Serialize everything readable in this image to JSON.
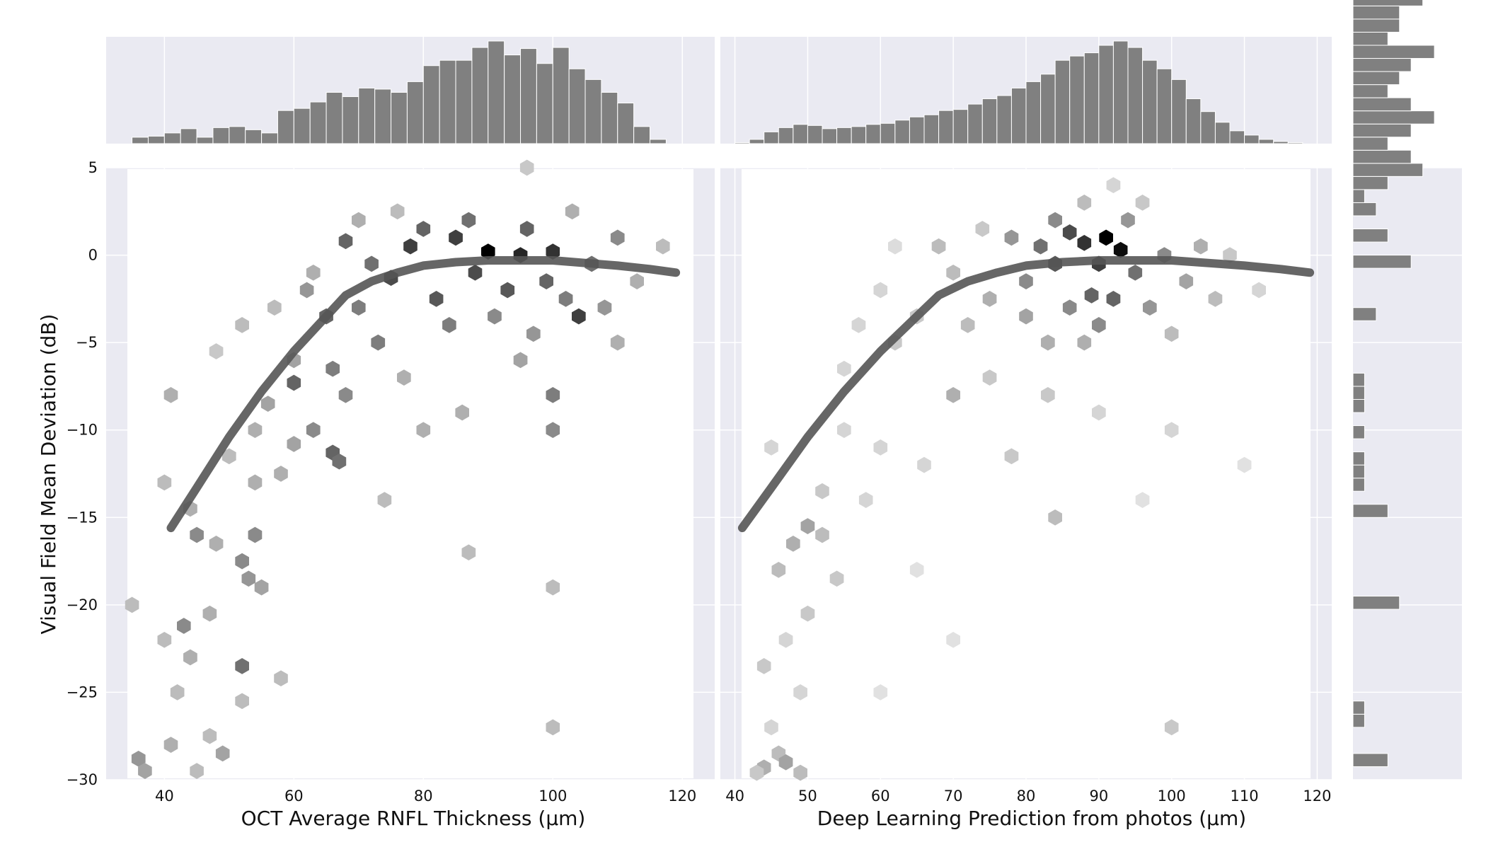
{
  "colors": {
    "panel_bg": "#eaeaf2",
    "grid": "#ffffff",
    "hist_bar": "#808080",
    "hist_edge": "#ffffff",
    "hexbin_dark": "#000000",
    "fit_line": "#555555",
    "text": "#111111"
  },
  "chart_data": [
    {
      "id": "left",
      "type": "hexbin",
      "xlabel": "OCT Average RNFL Thickness (µm)",
      "ylabel": "Visual Field Mean Deviation (dB)",
      "xlim": [
        31,
        125
      ],
      "ylim": [
        -30,
        5
      ],
      "xticks": [
        40,
        60,
        80,
        100,
        120
      ],
      "yticks": [
        5,
        0,
        -5,
        -10,
        -15,
        -20,
        -25,
        -30
      ],
      "grid": true,
      "fit_line": {
        "x": [
          41,
          45,
          50,
          55,
          60,
          65,
          68,
          72,
          76,
          80,
          85,
          90,
          95,
          100,
          105,
          110,
          115,
          119
        ],
        "y": [
          -15.6,
          -13.3,
          -10.4,
          -7.8,
          -5.5,
          -3.5,
          -2.3,
          -1.5,
          -1.0,
          -0.6,
          -0.4,
          -0.3,
          -0.3,
          -0.3,
          -0.45,
          -0.6,
          -0.8,
          -1.0
        ]
      },
      "hexbins": [
        [
          90,
          0.2,
          1.0
        ],
        [
          95,
          0.0,
          0.85
        ],
        [
          85,
          1.0,
          0.75
        ],
        [
          100,
          0.2,
          0.8
        ],
        [
          88,
          -1.0,
          0.7
        ],
        [
          78,
          0.5,
          0.75
        ],
        [
          75,
          -1.3,
          0.7
        ],
        [
          82,
          -2.5,
          0.65
        ],
        [
          93,
          -2.0,
          0.65
        ],
        [
          104,
          -3.5,
          0.75
        ],
        [
          68,
          0.8,
          0.6
        ],
        [
          72,
          -0.5,
          0.55
        ],
        [
          80,
          1.5,
          0.6
        ],
        [
          87,
          2.0,
          0.55
        ],
        [
          96,
          1.5,
          0.6
        ],
        [
          99,
          -1.5,
          0.6
        ],
        [
          106,
          -0.5,
          0.55
        ],
        [
          110,
          1.0,
          0.45
        ],
        [
          70,
          -3.0,
          0.5
        ],
        [
          65,
          -3.5,
          0.6
        ],
        [
          73,
          -5.0,
          0.5
        ],
        [
          84,
          -4.0,
          0.5
        ],
        [
          91,
          -3.5,
          0.45
        ],
        [
          97,
          -4.5,
          0.4
        ],
        [
          102,
          -2.5,
          0.5
        ],
        [
          108,
          -3.0,
          0.4
        ],
        [
          113,
          -1.5,
          0.3
        ],
        [
          117,
          0.5,
          0.25
        ],
        [
          62,
          -2.0,
          0.4
        ],
        [
          60,
          -6.0,
          0.35
        ],
        [
          66,
          -6.5,
          0.5
        ],
        [
          60,
          -7.3,
          0.6
        ],
        [
          68,
          -8.0,
          0.45
        ],
        [
          56,
          -8.5,
          0.35
        ],
        [
          63,
          -10.0,
          0.45
        ],
        [
          66,
          -11.3,
          0.6
        ],
        [
          67,
          -11.8,
          0.55
        ],
        [
          60,
          -10.8,
          0.35
        ],
        [
          58,
          -12.5,
          0.3
        ],
        [
          54,
          -13.0,
          0.3
        ],
        [
          77,
          -7.0,
          0.3
        ],
        [
          80,
          -10.0,
          0.3
        ],
        [
          86,
          -9.0,
          0.3
        ],
        [
          95,
          -6.0,
          0.35
        ],
        [
          100,
          -8.0,
          0.5
        ],
        [
          100,
          -10.0,
          0.45
        ],
        [
          110,
          -5.0,
          0.3
        ],
        [
          74,
          -14.0,
          0.25
        ],
        [
          54,
          -10.0,
          0.3
        ],
        [
          50,
          -11.5,
          0.25
        ],
        [
          44,
          -14.5,
          0.3
        ],
        [
          45,
          -16.0,
          0.45
        ],
        [
          48,
          -16.5,
          0.3
        ],
        [
          54,
          -16.0,
          0.45
        ],
        [
          52,
          -17.5,
          0.45
        ],
        [
          53,
          -18.5,
          0.4
        ],
        [
          55,
          -19.0,
          0.35
        ],
        [
          47,
          -20.5,
          0.3
        ],
        [
          43,
          -21.2,
          0.45
        ],
        [
          40,
          -22.0,
          0.25
        ],
        [
          52,
          -23.5,
          0.55
        ],
        [
          44,
          -23.0,
          0.3
        ],
        [
          42,
          -25.0,
          0.25
        ],
        [
          52,
          -25.5,
          0.25
        ],
        [
          47,
          -27.5,
          0.25
        ],
        [
          36,
          -28.8,
          0.4
        ],
        [
          37,
          -29.5,
          0.35
        ],
        [
          41,
          -28.0,
          0.3
        ],
        [
          45,
          -29.5,
          0.25
        ],
        [
          49,
          -28.5,
          0.35
        ],
        [
          100,
          -27.0,
          0.25
        ],
        [
          100,
          -19.0,
          0.25
        ],
        [
          87,
          -17.0,
          0.25
        ],
        [
          41,
          -8.0,
          0.3
        ],
        [
          35,
          -20.0,
          0.25
        ],
        [
          58,
          -24.2,
          0.25
        ],
        [
          40,
          -13.0,
          0.25
        ],
        [
          48,
          -5.5,
          0.2
        ],
        [
          52,
          -4.0,
          0.25
        ],
        [
          57,
          -3.0,
          0.25
        ],
        [
          63,
          -1.0,
          0.3
        ],
        [
          76,
          2.5,
          0.25
        ],
        [
          103,
          2.5,
          0.3
        ],
        [
          96,
          5.0,
          0.2
        ],
        [
          70,
          2.0,
          0.3
        ]
      ],
      "top_histogram": {
        "bin_start": 35,
        "bin_width": 2.5,
        "counts": [
          6,
          7,
          10,
          14,
          6,
          15,
          16,
          13,
          10,
          31,
          33,
          39,
          48,
          44,
          52,
          51,
          48,
          58,
          73,
          78,
          78,
          90,
          96,
          83,
          89,
          75,
          90,
          70,
          60,
          48,
          38,
          16,
          4
        ]
      }
    },
    {
      "id": "right",
      "type": "hexbin",
      "xlabel": "Deep Learning Prediction from photos (µm)",
      "ylabel": "",
      "xlim": [
        38,
        122
      ],
      "ylim": [
        -30,
        5
      ],
      "xticks": [
        40,
        50,
        60,
        70,
        80,
        90,
        100,
        110,
        120
      ],
      "yticks": [
        5,
        0,
        -5,
        -10,
        -15,
        -20,
        -25,
        -30
      ],
      "grid": true,
      "fit_line": {
        "x": [
          41,
          45,
          50,
          55,
          60,
          65,
          68,
          72,
          76,
          80,
          85,
          90,
          95,
          100,
          105,
          110,
          115,
          119
        ],
        "y": [
          -15.6,
          -13.3,
          -10.4,
          -7.8,
          -5.5,
          -3.5,
          -2.3,
          -1.5,
          -1.0,
          -0.6,
          -0.4,
          -0.3,
          -0.3,
          -0.3,
          -0.45,
          -0.6,
          -0.8,
          -1.0
        ]
      },
      "hexbins": [
        [
          91,
          1.0,
          1.0
        ],
        [
          93,
          0.3,
          0.95
        ],
        [
          88,
          0.7,
          0.8
        ],
        [
          90,
          -0.5,
          0.75
        ],
        [
          86,
          1.3,
          0.7
        ],
        [
          84,
          -0.5,
          0.65
        ],
        [
          89,
          -2.3,
          0.6
        ],
        [
          92,
          -2.5,
          0.6
        ],
        [
          95,
          -1.0,
          0.55
        ],
        [
          82,
          0.5,
          0.55
        ],
        [
          80,
          -1.5,
          0.45
        ],
        [
          86,
          -3.0,
          0.45
        ],
        [
          90,
          -4.0,
          0.45
        ],
        [
          97,
          -3.0,
          0.4
        ],
        [
          99,
          0.0,
          0.45
        ],
        [
          102,
          -1.5,
          0.35
        ],
        [
          78,
          1.0,
          0.4
        ],
        [
          84,
          2.0,
          0.45
        ],
        [
          94,
          2.0,
          0.4
        ],
        [
          80,
          -3.5,
          0.35
        ],
        [
          75,
          -2.5,
          0.3
        ],
        [
          72,
          -4.0,
          0.25
        ],
        [
          70,
          -1.0,
          0.25
        ],
        [
          68,
          0.5,
          0.25
        ],
        [
          104,
          0.5,
          0.3
        ],
        [
          106,
          -2.5,
          0.25
        ],
        [
          100,
          -4.5,
          0.25
        ],
        [
          88,
          -5.0,
          0.3
        ],
        [
          83,
          -5.0,
          0.3
        ],
        [
          108,
          0.0,
          0.2
        ],
        [
          112,
          -2.0,
          0.15
        ],
        [
          65,
          -3.5,
          0.2
        ],
        [
          62,
          -5.0,
          0.2
        ],
        [
          60,
          -2.0,
          0.15
        ],
        [
          57,
          -4.0,
          0.15
        ],
        [
          55,
          -6.5,
          0.15
        ],
        [
          75,
          -7.0,
          0.2
        ],
        [
          83,
          -8.0,
          0.2
        ],
        [
          90,
          -9.0,
          0.15
        ],
        [
          70,
          -8.0,
          0.3
        ],
        [
          78,
          -11.5,
          0.2
        ],
        [
          66,
          -12.0,
          0.15
        ],
        [
          60,
          -11.0,
          0.15
        ],
        [
          55,
          -10.0,
          0.15
        ],
        [
          52,
          -13.5,
          0.2
        ],
        [
          50,
          -15.5,
          0.35
        ],
        [
          48,
          -16.5,
          0.3
        ],
        [
          52,
          -16.0,
          0.25
        ],
        [
          46,
          -18.0,
          0.25
        ],
        [
          54,
          -18.5,
          0.2
        ],
        [
          50,
          -20.5,
          0.2
        ],
        [
          47,
          -22.0,
          0.15
        ],
        [
          44,
          -23.5,
          0.2
        ],
        [
          49,
          -25.0,
          0.15
        ],
        [
          45,
          -27.0,
          0.15
        ],
        [
          46,
          -28.5,
          0.25
        ],
        [
          44,
          -29.3,
          0.3
        ],
        [
          47,
          -29.0,
          0.35
        ],
        [
          49,
          -29.6,
          0.25
        ],
        [
          43,
          -29.6,
          0.2
        ],
        [
          100,
          -27.0,
          0.2
        ],
        [
          84,
          -15.0,
          0.25
        ],
        [
          100,
          -10.0,
          0.15
        ],
        [
          110,
          -12.0,
          0.1
        ],
        [
          65,
          -18.0,
          0.1
        ],
        [
          70,
          -22.0,
          0.1
        ],
        [
          60,
          -25.0,
          0.1
        ],
        [
          58,
          -14.0,
          0.15
        ],
        [
          45,
          -11.0,
          0.15
        ],
        [
          96,
          -14.0,
          0.1
        ],
        [
          92,
          4.0,
          0.15
        ],
        [
          96,
          3.0,
          0.2
        ],
        [
          88,
          3.0,
          0.25
        ],
        [
          62,
          0.5,
          0.12
        ],
        [
          74,
          1.5,
          0.2
        ]
      ],
      "top_histogram": {
        "bin_start": 40,
        "bin_width": 2,
        "counts": [
          1,
          4,
          11,
          15,
          18,
          17,
          14,
          15,
          16,
          18,
          19,
          22,
          25,
          27,
          31,
          32,
          37,
          42,
          45,
          52,
          58,
          65,
          78,
          82,
          85,
          92,
          96,
          90,
          78,
          70,
          60,
          42,
          30,
          20,
          12,
          8,
          4,
          2,
          1
        ]
      },
      "right_histogram": {
        "bin_start": -30,
        "bin_width": 0.75,
        "counts": [
          0,
          3,
          0,
          0,
          1,
          1,
          0,
          0,
          0,
          0,
          0,
          0,
          0,
          4,
          0,
          0,
          0,
          0,
          0,
          0,
          3,
          0,
          1,
          1,
          1,
          0,
          1,
          0,
          1,
          1,
          1,
          0,
          0,
          0,
          0,
          2,
          0,
          0,
          0,
          5,
          0,
          3,
          0,
          2,
          1,
          3,
          6,
          5,
          3,
          5,
          7,
          5,
          3,
          4,
          5,
          7,
          3,
          4,
          4,
          6,
          9,
          6,
          2,
          8,
          8,
          4,
          5
        ]
      }
    }
  ]
}
